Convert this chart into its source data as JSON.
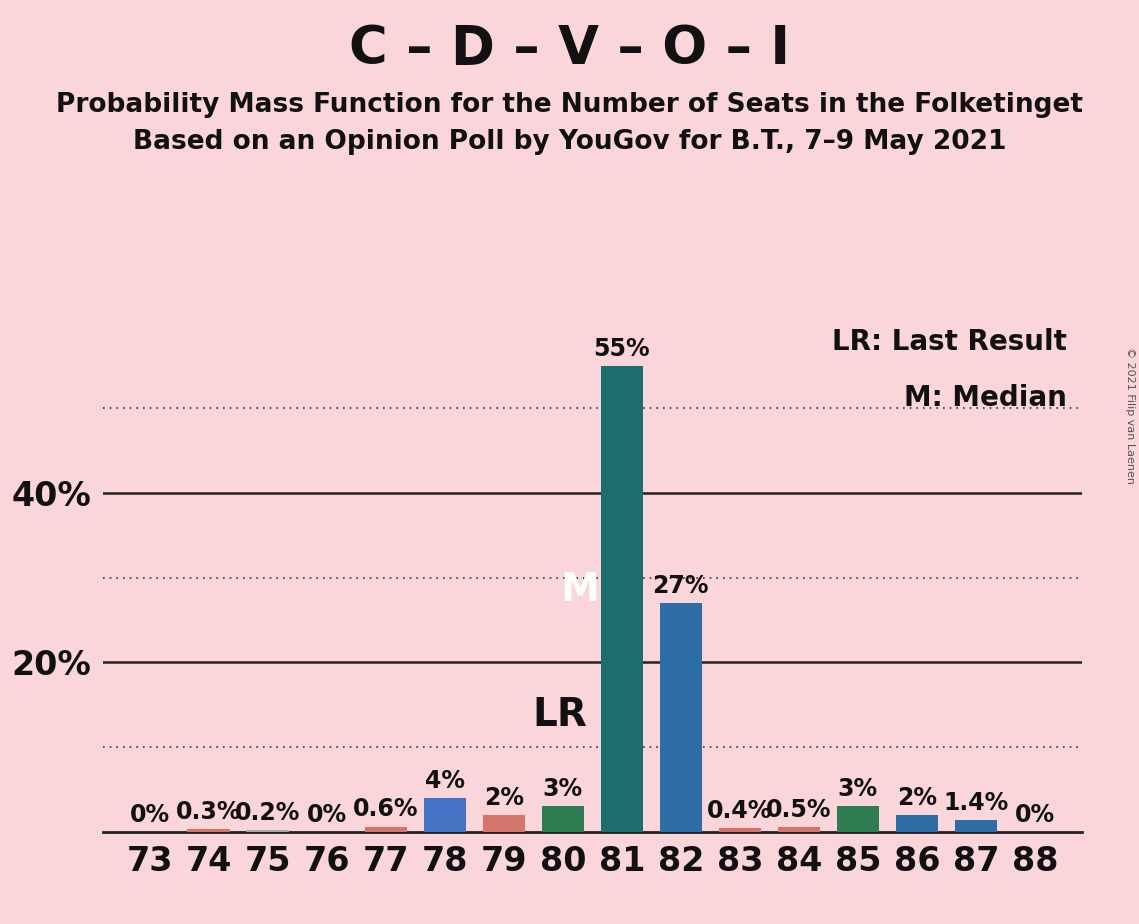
{
  "title": "C – D – V – O – I",
  "subtitle1": "Probability Mass Function for the Number of Seats in the Folketinget",
  "subtitle2": "Based on an Opinion Poll by YouGov for B.T., 7–9 May 2021",
  "copyright": "© 2021 Filip van Laenen",
  "seats": [
    73,
    74,
    75,
    76,
    77,
    78,
    79,
    80,
    81,
    82,
    83,
    84,
    85,
    86,
    87,
    88
  ],
  "probabilities": [
    0.0,
    0.3,
    0.2,
    0.0,
    0.6,
    4.0,
    2.0,
    3.0,
    55.0,
    27.0,
    0.4,
    0.5,
    3.0,
    2.0,
    1.4,
    0.0
  ],
  "bar_colors": [
    "#d4746a",
    "#d4746a",
    "#aaaaaa",
    "#aaaaaa",
    "#d4746a",
    "#4472c4",
    "#d4746a",
    "#2e7d52",
    "#1c6e6e",
    "#2e6ea6",
    "#d4746a",
    "#d4746a",
    "#2e7d52",
    "#2e6ea6",
    "#2e6ea6",
    "#d4746a"
  ],
  "last_result_seat": 80,
  "median_seat": 81,
  "background_color": "#fad5da",
  "solid_gridlines": [
    20,
    40
  ],
  "dotted_gridlines": [
    10,
    30,
    50
  ],
  "ytick_labels": [
    "20%",
    "40%"
  ],
  "ytick_values": [
    20,
    40
  ],
  "ymax": 60,
  "legend_lr": "LR: Last Result",
  "legend_m": "M: Median",
  "title_fontsize": 38,
  "subtitle_fontsize": 19,
  "axis_tick_fontsize": 24,
  "bar_label_fontsize": 17,
  "lr_annotation_fontsize": 28,
  "m_annotation_fontsize": 28,
  "legend_fontsize": 20
}
